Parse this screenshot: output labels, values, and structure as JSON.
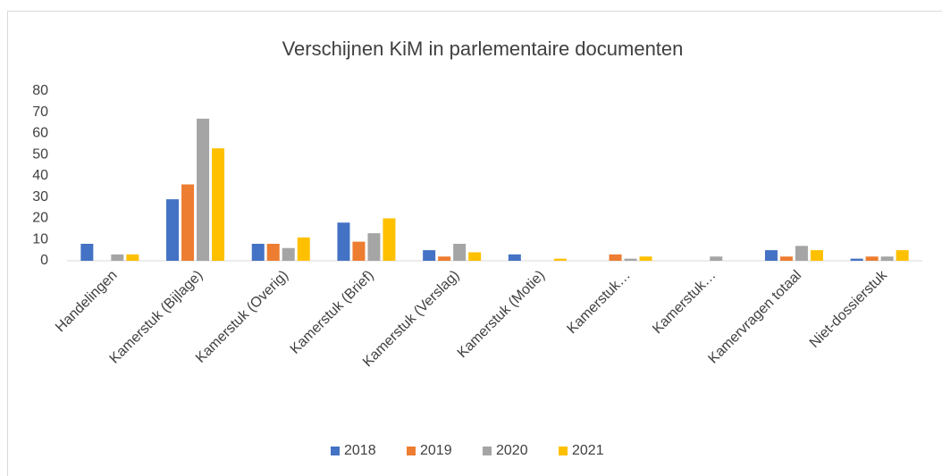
{
  "chart_data": {
    "type": "bar",
    "title": "Verschijnen KiM in parlementaire documenten",
    "categories": [
      "Handelingen",
      "Kamerstuk (Bijlage)",
      "Kamerstuk (Overig)",
      "Kamerstuk (Brief)",
      "Kamerstuk (Verslag)",
      "Kamerstuk (Motie)",
      "Kamerstuk…",
      "Kamerstuk…",
      "Kamervragen totaal",
      "Niet-dossierstuk"
    ],
    "series": [
      {
        "name": "2018",
        "color": "#4472c4",
        "values": [
          8,
          29,
          8,
          18,
          5,
          3,
          0,
          0,
          5,
          1
        ]
      },
      {
        "name": "2019",
        "color": "#ed7d31",
        "values": [
          0,
          36,
          8,
          9,
          2,
          0,
          3,
          0,
          2,
          2
        ]
      },
      {
        "name": "2020",
        "color": "#a5a5a5",
        "values": [
          3,
          67,
          6,
          13,
          8,
          0,
          1,
          2,
          7,
          2
        ]
      },
      {
        "name": "2021",
        "color": "#ffc000",
        "values": [
          3,
          53,
          11,
          20,
          4,
          1,
          2,
          0,
          5,
          5
        ]
      }
    ],
    "ylim": [
      0,
      80
    ],
    "yticks": [
      0,
      10,
      20,
      30,
      40,
      50,
      60,
      70,
      80
    ],
    "grid": false,
    "legend": "bottom"
  }
}
